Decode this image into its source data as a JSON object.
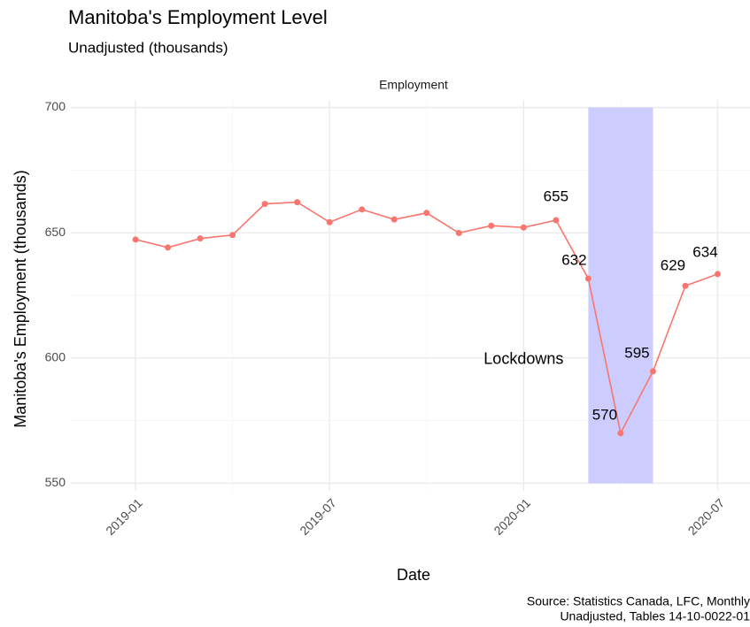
{
  "chart_data": {
    "type": "line",
    "title": "Manitoba's Employment Level",
    "subtitle": "Unadjusted (thousands)",
    "facet_label": "Employment",
    "x_label": "Date",
    "y_label": "Manitoba's Employment (thousands)",
    "caption": [
      "Source: Statistics Canada, LFC, Monthly",
      "Unadjusted, Tables 14-10-0022-01"
    ],
    "x": [
      "2019-01",
      "2019-02",
      "2019-03",
      "2019-04",
      "2019-05",
      "2019-06",
      "2019-07",
      "2019-08",
      "2019-09",
      "2019-10",
      "2019-11",
      "2019-12",
      "2020-01",
      "2020-02",
      "2020-03",
      "2020-04",
      "2020-05",
      "2020-06",
      "2020-07"
    ],
    "series": [
      {
        "name": "Employment",
        "color": "#f8766d",
        "values": [
          647.3,
          644.1,
          647.7,
          649.1,
          661.5,
          662.2,
          654.2,
          659.3,
          655.3,
          657.9,
          649.9,
          652.8,
          652.1,
          655,
          631.7,
          570,
          594.7,
          628.8,
          633.5
        ],
        "value_labels": [
          null,
          null,
          null,
          null,
          null,
          null,
          null,
          null,
          null,
          null,
          null,
          null,
          null,
          "655",
          "632",
          "570",
          "595",
          "629",
          "634"
        ]
      }
    ],
    "xlim": [
      "2018-11",
      "2020-08"
    ],
    "xticks": [
      "2019-01",
      "2019-07",
      "2020-01",
      "2020-07"
    ],
    "minor_xticks": [
      "2019-04",
      "2019-10",
      "2020-04"
    ],
    "ylim": [
      547,
      703
    ],
    "yticks": [
      550,
      600,
      650,
      700
    ],
    "minor_yticks": [
      575,
      625,
      675
    ],
    "grid": true,
    "shaded_region": {
      "label": "Lockdowns",
      "xmin": "2020-03",
      "xmax": "2020-05",
      "ymin": 550,
      "ymax": 700,
      "color": "#ccccff",
      "label_x": "2020-01",
      "label_y": 600
    }
  }
}
